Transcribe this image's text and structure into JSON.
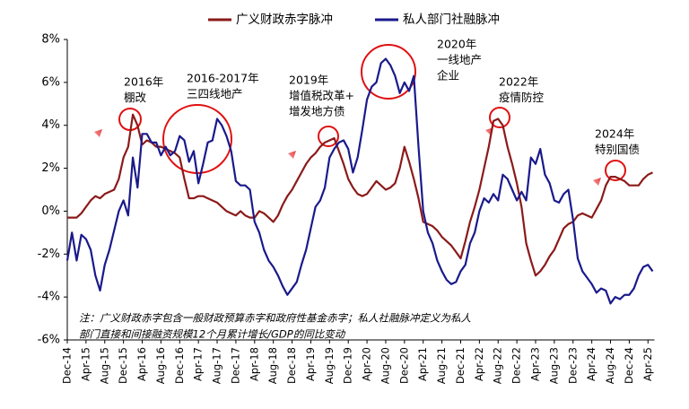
{
  "chart_data": {
    "type": "line",
    "categories": [
      "Dec-14",
      null,
      null,
      null,
      "Apr-15",
      null,
      null,
      null,
      "Aug-15",
      null,
      null,
      null,
      "Dec-15",
      null,
      null,
      null,
      "Apr-16",
      null,
      null,
      null,
      "Aug-16",
      null,
      null,
      null,
      "Dec-16",
      null,
      null,
      null,
      "Apr-17",
      null,
      null,
      null,
      "Aug-17",
      null,
      null,
      null,
      "Dec-17",
      null,
      null,
      null,
      "Apr-18",
      null,
      null,
      null,
      "Aug-18",
      null,
      null,
      null,
      "Dec-18",
      null,
      null,
      null,
      "Apr-19",
      null,
      null,
      null,
      "Aug-19",
      null,
      null,
      null,
      "Dec-19",
      null,
      null,
      null,
      "Apr-20",
      null,
      null,
      null,
      "Aug-20",
      null,
      null,
      null,
      "Dec-20",
      null,
      null,
      null,
      "Apr-21",
      null,
      null,
      null,
      "Aug-21",
      null,
      null,
      null,
      "Dec-21",
      null,
      null,
      null,
      "Apr-22",
      null,
      null,
      null,
      "Aug-22",
      null,
      null,
      null,
      "Dec-22",
      null,
      null,
      null,
      "Apr-23",
      null,
      null,
      null,
      "Aug-23",
      null,
      null,
      null,
      "Dec-23",
      null,
      null,
      null,
      "Apr-24",
      null,
      null,
      null,
      "Aug-24",
      null,
      null,
      null,
      "Dec-24",
      null,
      null,
      null,
      "Apr-25",
      null
    ],
    "series": [
      {
        "name": "广义财政赤字脉冲",
        "color": "#8b1a1a",
        "values": [
          -0.3,
          -0.3,
          -0.3,
          -0.1,
          0.2,
          0.5,
          0.7,
          0.6,
          0.8,
          0.9,
          1.0,
          1.5,
          2.5,
          3.0,
          4.5,
          4.0,
          3.1,
          3.3,
          3.2,
          3.0,
          3.0,
          2.9,
          2.8,
          2.7,
          2.5,
          1.5,
          0.6,
          0.6,
          0.7,
          0.7,
          0.6,
          0.5,
          0.4,
          0.2,
          0.0,
          -0.1,
          -0.2,
          0.0,
          -0.2,
          -0.3,
          -0.3,
          0.0,
          -0.1,
          -0.3,
          -0.5,
          -0.2,
          0.3,
          0.7,
          1.0,
          1.4,
          1.8,
          2.2,
          2.5,
          2.7,
          3.0,
          3.2,
          3.3,
          3.4,
          2.8,
          2.2,
          1.5,
          1.1,
          0.8,
          0.7,
          0.8,
          1.1,
          1.4,
          1.2,
          1.0,
          1.1,
          1.3,
          2.0,
          3.0,
          2.3,
          1.5,
          0.6,
          -0.5,
          -0.6,
          -0.7,
          -0.9,
          -1.2,
          -1.4,
          -1.6,
          -1.9,
          -2.2,
          -1.4,
          -0.5,
          0.2,
          1.0,
          2.0,
          3.0,
          4.2,
          4.3,
          4.0,
          3.0,
          2.2,
          1.3,
          0.2,
          -1.5,
          -2.3,
          -3.0,
          -2.8,
          -2.5,
          -2.1,
          -1.8,
          -1.3,
          -0.8,
          -0.6,
          -0.5,
          -0.2,
          -0.1,
          -0.2,
          -0.3,
          0.1,
          0.5,
          1.2,
          1.6,
          1.6,
          1.5,
          1.4,
          1.2,
          1.2,
          1.2,
          1.5,
          1.7,
          1.8
        ]
      },
      {
        "name": "私人部门社融脉冲",
        "color": "#1a1a8c",
        "values": [
          -2.3,
          -1.0,
          -2.3,
          -1.1,
          -1.3,
          -1.8,
          -3.0,
          -3.7,
          -2.5,
          -1.8,
          -0.9,
          0.0,
          0.5,
          -0.2,
          2.5,
          1.1,
          3.6,
          3.6,
          3.2,
          3.2,
          2.6,
          3.0,
          2.6,
          2.8,
          3.5,
          3.3,
          2.3,
          2.8,
          1.3,
          2.2,
          3.2,
          3.3,
          4.3,
          4.0,
          3.5,
          2.8,
          1.4,
          1.2,
          1.2,
          1.0,
          -0.5,
          -1.0,
          -1.8,
          -2.3,
          -2.6,
          -3.0,
          -3.5,
          -3.9,
          -3.6,
          -3.3,
          -2.5,
          -1.8,
          -0.8,
          0.2,
          0.5,
          1.1,
          2.5,
          2.9,
          3.2,
          3.3,
          2.9,
          1.8,
          2.5,
          3.8,
          5.2,
          5.8,
          6.0,
          6.9,
          7.1,
          6.8,
          6.3,
          5.5,
          6.0,
          5.6,
          6.3,
          3.0,
          0.0,
          -1.0,
          -1.5,
          -2.3,
          -2.8,
          -3.2,
          -3.4,
          -3.3,
          -2.8,
          -2.5,
          -1.5,
          -1.0,
          0.0,
          0.6,
          0.4,
          0.8,
          0.5,
          1.7,
          1.5,
          1.0,
          0.5,
          0.9,
          0.5,
          2.5,
          2.2,
          2.9,
          1.7,
          1.3,
          0.5,
          0.4,
          0.8,
          1.0,
          -0.4,
          -2.2,
          -2.8,
          -3.1,
          -3.4,
          -3.8,
          -3.6,
          -3.7,
          -4.3,
          -4.0,
          -4.1,
          -3.9,
          -3.9,
          -3.6,
          -3.0,
          -2.6,
          -2.5,
          -2.8
        ]
      }
    ],
    "ylim": [
      -6,
      8
    ],
    "yticks": [
      {
        "value": -6,
        "label": "-6%"
      },
      {
        "value": -4,
        "label": "-4%"
      },
      {
        "value": -2,
        "label": "-2%"
      },
      {
        "value": 0,
        "label": "0%"
      },
      {
        "value": 2,
        "label": "2%"
      },
      {
        "value": 4,
        "label": "4%"
      },
      {
        "value": 6,
        "label": "6%"
      },
      {
        "value": 8,
        "label": "8%"
      }
    ],
    "annotations": [
      {
        "lines": [
          "2016年",
          "棚改"
        ]
      },
      {
        "lines": [
          "2016-2017年",
          "三四线地产"
        ]
      },
      {
        "lines": [
          "2019年",
          "增值税改革+",
          "增发地方债"
        ]
      },
      {
        "lines": [
          "2020年",
          "一线地产",
          "企业"
        ]
      },
      {
        "lines": [
          "2022年",
          "疫情防控"
        ]
      },
      {
        "lines": [
          "2024年",
          "特别国债"
        ]
      }
    ],
    "note": [
      "注：广义财政赤字包含一般财政预算赤字和政府性基金赤字；私人社融脉冲定义为私人",
      "部门直接和间接融资规模12个月累计增长/GDP的同比变动"
    ]
  }
}
